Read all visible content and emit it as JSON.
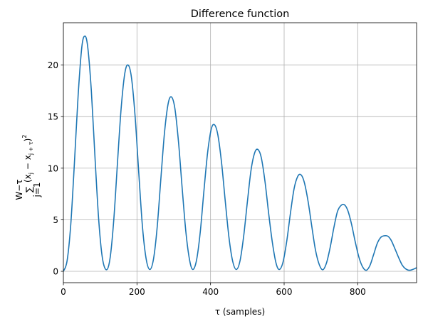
{
  "chart_data": {
    "type": "line",
    "title": "Difference function",
    "xlabel": "τ (samples)",
    "ylabel": {
      "sum_upper": "W−τ",
      "sum_lower": "j=1",
      "sigma": "∑",
      "expression": "(x",
      "sub1": "j",
      "minus": " − x",
      "sub2": "j + τ",
      "close": ")",
      "power": "2"
    },
    "xlim": [
      0,
      960
    ],
    "ylim": [
      -1.1,
      24.1
    ],
    "grid": true,
    "x_ticks": [
      {
        "value": 0,
        "label": "0"
      },
      {
        "value": 200,
        "label": "200"
      },
      {
        "value": 400,
        "label": "400"
      },
      {
        "value": 600,
        "label": "600"
      },
      {
        "value": 800,
        "label": "800"
      }
    ],
    "y_ticks": [
      {
        "value": 0,
        "label": "0"
      },
      {
        "value": 5,
        "label": "5"
      },
      {
        "value": 10,
        "label": "10"
      },
      {
        "value": 15,
        "label": "15"
      },
      {
        "value": 20,
        "label": "20"
      }
    ],
    "series": [
      {
        "color": "#1f77b4",
        "points": [
          [
            0,
            0
          ],
          [
            10,
            1.0
          ],
          [
            20,
            4.5
          ],
          [
            30,
            10.5
          ],
          [
            40,
            17.0
          ],
          [
            50,
            21.7
          ],
          [
            58,
            22.8
          ],
          [
            66,
            21.8
          ],
          [
            76,
            17.5
          ],
          [
            86,
            11.0
          ],
          [
            96,
            5.0
          ],
          [
            106,
            1.3
          ],
          [
            117,
            0.15
          ],
          [
            127,
            1.3
          ],
          [
            137,
            5.0
          ],
          [
            147,
            10.5
          ],
          [
            157,
            15.8
          ],
          [
            167,
            19.2
          ],
          [
            176,
            20.0
          ],
          [
            185,
            18.8
          ],
          [
            195,
            15.0
          ],
          [
            205,
            9.5
          ],
          [
            215,
            4.3
          ],
          [
            225,
            1.2
          ],
          [
            235,
            0.18
          ],
          [
            245,
            1.2
          ],
          [
            255,
            4.3
          ],
          [
            265,
            9.0
          ],
          [
            275,
            13.5
          ],
          [
            285,
            16.3
          ],
          [
            294,
            16.9
          ],
          [
            303,
            15.8
          ],
          [
            313,
            12.5
          ],
          [
            323,
            8.0
          ],
          [
            333,
            3.8
          ],
          [
            343,
            1.1
          ],
          [
            352,
            0.18
          ],
          [
            362,
            1.1
          ],
          [
            372,
            3.8
          ],
          [
            382,
            7.8
          ],
          [
            392,
            11.5
          ],
          [
            402,
            13.8
          ],
          [
            411,
            14.2
          ],
          [
            420,
            13.2
          ],
          [
            430,
            10.5
          ],
          [
            440,
            6.8
          ],
          [
            450,
            3.3
          ],
          [
            460,
            1.0
          ],
          [
            470,
            0.18
          ],
          [
            480,
            1.0
          ],
          [
            490,
            3.4
          ],
          [
            500,
            6.7
          ],
          [
            510,
            9.8
          ],
          [
            520,
            11.5
          ],
          [
            529,
            11.8
          ],
          [
            538,
            11.0
          ],
          [
            548,
            8.7
          ],
          [
            558,
            5.6
          ],
          [
            568,
            2.8
          ],
          [
            578,
            0.8
          ],
          [
            587,
            0.18
          ],
          [
            597,
            0.9
          ],
          [
            607,
            2.9
          ],
          [
            617,
            5.6
          ],
          [
            627,
            8.0
          ],
          [
            637,
            9.2
          ],
          [
            646,
            9.35
          ],
          [
            655,
            8.6
          ],
          [
            665,
            6.8
          ],
          [
            675,
            4.4
          ],
          [
            685,
            2.1
          ],
          [
            695,
            0.7
          ],
          [
            705,
            0.15
          ],
          [
            715,
            0.8
          ],
          [
            725,
            2.3
          ],
          [
            735,
            4.2
          ],
          [
            745,
            5.8
          ],
          [
            755,
            6.4
          ],
          [
            764,
            6.45
          ],
          [
            773,
            5.9
          ],
          [
            783,
            4.6
          ],
          [
            793,
            2.9
          ],
          [
            803,
            1.4
          ],
          [
            813,
            0.45
          ],
          [
            823,
            0.1
          ],
          [
            833,
            0.55
          ],
          [
            843,
            1.6
          ],
          [
            853,
            2.7
          ],
          [
            863,
            3.3
          ],
          [
            873,
            3.45
          ],
          [
            882,
            3.4
          ],
          [
            891,
            3.0
          ],
          [
            901,
            2.2
          ],
          [
            911,
            1.35
          ],
          [
            921,
            0.6
          ],
          [
            931,
            0.22
          ],
          [
            941,
            0.1
          ],
          [
            951,
            0.2
          ],
          [
            960,
            0.35
          ]
        ]
      }
    ]
  }
}
